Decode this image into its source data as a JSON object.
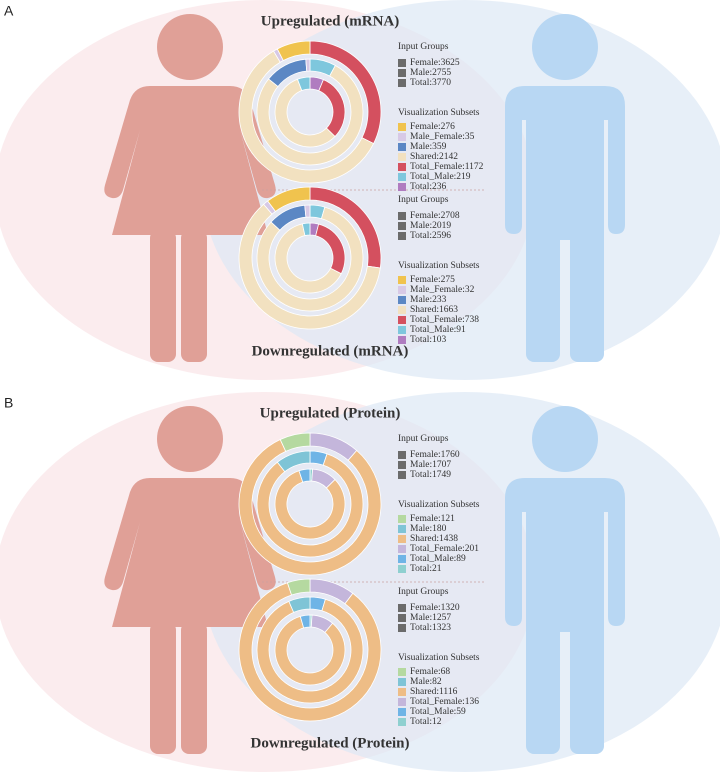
{
  "panels": [
    {
      "label": "A",
      "charts": [
        {
          "title": "Upregulated (mRNA)",
          "input_title": "Input Groups",
          "subsets_title": "Visualization Subsets",
          "input_groups": [
            {
              "value": 3625,
              "label": "Female:3625"
            },
            {
              "value": 2755,
              "label": "Male:2755"
            },
            {
              "value": 3770,
              "label": "Total:3770"
            }
          ],
          "subsets": [
            {
              "value": 276,
              "label": "Female:276",
              "color": "#f0c34e"
            },
            {
              "value": 35,
              "label": "Male_Female:35",
              "color": "#d7c9e6"
            },
            {
              "value": 359,
              "label": "Male:359",
              "color": "#5b87c4"
            },
            {
              "value": 2142,
              "label": "Shared:2142",
              "color": "#f2e1c0"
            },
            {
              "value": 1172,
              "label": "Total_Female:1172",
              "color": "#d4505f"
            },
            {
              "value": 219,
              "label": "Total_Male:219",
              "color": "#7ec7dd"
            },
            {
              "value": 236,
              "label": "Total:236",
              "color": "#b07cc0"
            }
          ]
        },
        {
          "title": "Downregulated (mRNA)",
          "input_title": "Input Groups",
          "subsets_title": "Visualization Subsets",
          "input_groups": [
            {
              "value": 2708,
              "label": "Female:2708"
            },
            {
              "value": 2019,
              "label": "Male:2019"
            },
            {
              "value": 2596,
              "label": "Total:2596"
            }
          ],
          "subsets": [
            {
              "value": 275,
              "label": "Female:275",
              "color": "#f0c34e"
            },
            {
              "value": 32,
              "label": "Male_Female:32",
              "color": "#d7c9e6"
            },
            {
              "value": 233,
              "label": "Male:233",
              "color": "#5b87c4"
            },
            {
              "value": 1663,
              "label": "Shared:1663",
              "color": "#f2e1c0"
            },
            {
              "value": 738,
              "label": "Total_Female:738",
              "color": "#d4505f"
            },
            {
              "value": 91,
              "label": "Total_Male:91",
              "color": "#7ec7dd"
            },
            {
              "value": 103,
              "label": "Total:103",
              "color": "#b07cc0"
            }
          ]
        }
      ]
    },
    {
      "label": "B",
      "charts": [
        {
          "title": "Upregulated (Protein)",
          "input_title": "Input Groups",
          "subsets_title": "Visualization Subsets",
          "input_groups": [
            {
              "value": 1760,
              "label": "Female:1760"
            },
            {
              "value": 1707,
              "label": "Male:1707"
            },
            {
              "value": 1749,
              "label": "Total:1749"
            }
          ],
          "subsets": [
            {
              "value": 121,
              "label": "Female:121",
              "color": "#b5d9a0"
            },
            {
              "value": 180,
              "label": "Male:180",
              "color": "#7fc4d6"
            },
            {
              "value": 1438,
              "label": "Shared:1438",
              "color": "#eebd86"
            },
            {
              "value": 201,
              "label": "Total_Female:201",
              "color": "#c4b6db"
            },
            {
              "value": 89,
              "label": "Total_Male:89",
              "color": "#6fb4e6"
            },
            {
              "value": 21,
              "label": "Total:21",
              "color": "#8fd0d0"
            }
          ]
        },
        {
          "title": "Downregulated (Protein)",
          "input_title": "Input Groups",
          "subsets_title": "Visualization Subsets",
          "input_groups": [
            {
              "value": 1320,
              "label": "Female:1320"
            },
            {
              "value": 1257,
              "label": "Male:1257"
            },
            {
              "value": 1323,
              "label": "Total:1323"
            }
          ],
          "subsets": [
            {
              "value": 68,
              "label": "Female:68",
              "color": "#b5d9a0"
            },
            {
              "value": 82,
              "label": "Male:82",
              "color": "#7fc4d6"
            },
            {
              "value": 1116,
              "label": "Shared:1116",
              "color": "#eebd86"
            },
            {
              "value": 136,
              "label": "Total_Female:136",
              "color": "#c4b6db"
            },
            {
              "value": 59,
              "label": "Total_Male:59",
              "color": "#6fb4e6"
            },
            {
              "value": 12,
              "label": "Total:12",
              "color": "#8fd0d0"
            }
          ]
        }
      ]
    }
  ]
}
